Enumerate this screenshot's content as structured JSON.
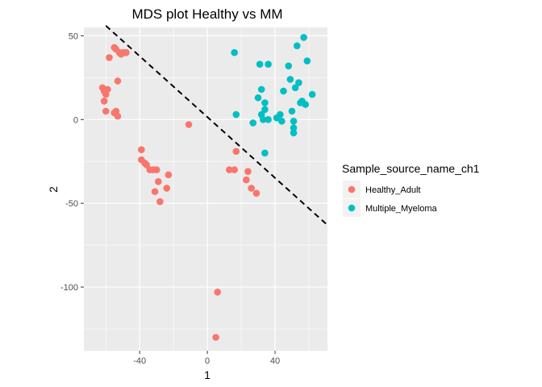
{
  "chart_data": {
    "type": "scatter",
    "title": "MDS plot Healthy vs MM",
    "xlabel": "1",
    "ylabel": "2",
    "xlim": [
      -73,
      71
    ],
    "ylim": [
      -138,
      55
    ],
    "x_ticks": [
      -40,
      0,
      40
    ],
    "y_ticks": [
      50,
      0,
      -50,
      -100
    ],
    "grid": true,
    "legend": {
      "title": "Sample_source_name_ch1",
      "placement": "right"
    },
    "reference_line": {
      "style": "dashed",
      "color": "#000000",
      "points": [
        [
          -60,
          56
        ],
        [
          71,
          -63
        ]
      ]
    },
    "series": [
      {
        "name": "Healthy_Adult",
        "color": "#F8766D",
        "points": [
          [
            -55,
            43
          ],
          [
            -54,
            42
          ],
          [
            -52,
            40
          ],
          [
            -51,
            39
          ],
          [
            -50,
            40
          ],
          [
            -49,
            40
          ],
          [
            -48,
            40
          ],
          [
            -58,
            37
          ],
          [
            -53,
            23
          ],
          [
            -62,
            19
          ],
          [
            -61,
            17
          ],
          [
            -59,
            18
          ],
          [
            -60,
            15
          ],
          [
            -61,
            11
          ],
          [
            -60,
            5
          ],
          [
            -54,
            5
          ],
          [
            -55,
            4
          ],
          [
            -53,
            2
          ],
          [
            -11,
            -3
          ],
          [
            -39,
            -18
          ],
          [
            -39,
            -24
          ],
          [
            -37,
            -26
          ],
          [
            -36,
            -27
          ],
          [
            -34,
            -30
          ],
          [
            -32,
            -30
          ],
          [
            -30,
            -30
          ],
          [
            -23,
            -33
          ],
          [
            -29,
            -37
          ],
          [
            -24,
            -41
          ],
          [
            -31,
            -43
          ],
          [
            -28,
            -49
          ],
          [
            17,
            -19
          ],
          [
            13,
            -30
          ],
          [
            16,
            -30
          ],
          [
            24,
            -31
          ],
          [
            23,
            -36
          ],
          [
            26,
            -41
          ],
          [
            29,
            -44
          ],
          [
            6,
            -103
          ],
          [
            5,
            -130
          ]
        ]
      },
      {
        "name": "Multiple_Myeloma",
        "color": "#00BFC4",
        "points": [
          [
            57,
            49
          ],
          [
            16,
            40
          ],
          [
            53,
            44
          ],
          [
            31,
            33
          ],
          [
            36,
            33
          ],
          [
            48,
            32
          ],
          [
            59,
            35
          ],
          [
            49,
            24
          ],
          [
            54,
            22
          ],
          [
            52,
            19
          ],
          [
            45,
            17
          ],
          [
            32,
            18
          ],
          [
            30,
            13
          ],
          [
            34,
            10
          ],
          [
            56,
            11
          ],
          [
            55,
            10
          ],
          [
            58,
            9
          ],
          [
            62,
            15
          ],
          [
            50,
            5
          ],
          [
            34,
            6
          ],
          [
            32,
            3
          ],
          [
            43,
            3
          ],
          [
            41,
            1
          ],
          [
            17,
            3
          ],
          [
            27,
            -2
          ],
          [
            33,
            0
          ],
          [
            36,
            0
          ],
          [
            44,
            -1
          ],
          [
            51,
            -1
          ],
          [
            51,
            -5
          ],
          [
            51,
            -8
          ],
          [
            34,
            -20
          ]
        ]
      }
    ]
  }
}
